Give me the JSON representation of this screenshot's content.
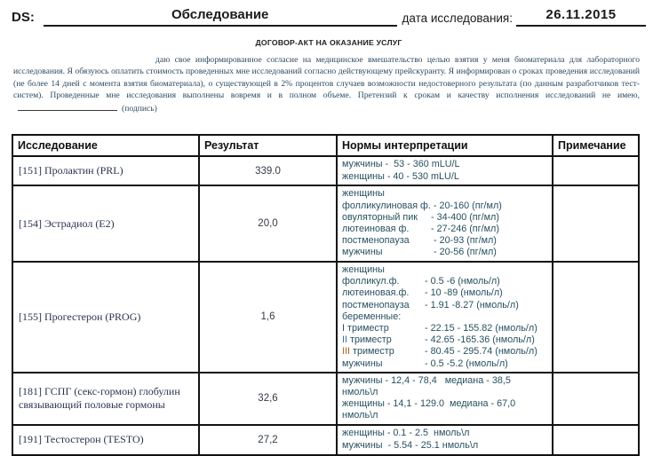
{
  "header": {
    "ds_label": "DS:",
    "exam_label": "Обследование",
    "date_label": "дата исследования:",
    "date_value": "26.11.2015"
  },
  "contract": {
    "title": "ДОГОВОР-АКТ НА ОКАЗАНИЕ УСЛУГ",
    "consent_text": "даю свое информированное согласие на медицинское вмешательство целью взятия у меня биоматериала для лабораторного исследования. Я обязуюсь оплатить стоимость проведенных мне исследований согласно действующему прейскуранту. Я информирован о сроках проведения исследований (не более 14 дней с момента взятия биоматериала), о существующей в 2% процентов случаев возможности недостоверного результата (по данным разработчиков тест-систем). Проведенные мне исследования выполнены вовремя и в полном объеме. Претензий к срокам и качеству исполнения исследований не имею,",
    "signature_label": "(подпись)"
  },
  "results_table": {
    "columns": [
      "Исследование",
      "Результат",
      "Нормы интерпретации",
      "Примечание"
    ],
    "rows": [
      {
        "name": "[151] Пролактин (PRL)",
        "result": "339.0",
        "norms": [
          {
            "text": "мужчины -  53 - 360 mLU/L"
          },
          {
            "text": "женщины - 40 - 530 mLU/L"
          }
        ],
        "note": ""
      },
      {
        "name": "[154] Эстрадиол (E2)",
        "result": "20,0",
        "norms": [
          {
            "text": "женщины"
          },
          {
            "label": "фолликулиновая ф.",
            "value": " - 20-160 (пг/мл)"
          },
          {
            "label": "овуляторный пик",
            "value": " - 34-400 (пг/мл)"
          },
          {
            "label": "лютеиновая ф.",
            "value": " - 27-246 (пг/мл)"
          },
          {
            "label": "постменопауза",
            "value": "  - 20-93 (пг/мл)"
          },
          {
            "label": "мужчины",
            "value": "  - 20-56 (пг/мл)"
          }
        ],
        "note": ""
      },
      {
        "name": "[155] Прогестерон (PROG)",
        "result": "1,6",
        "norms": [
          {
            "text": "женщины"
          },
          {
            "label": "фолликул.ф.",
            "value": " - 0.5 -6 (нмоль/л)"
          },
          {
            "label": "лютеиновая.ф.",
            "value": " - 10 -89 (нмоль/л)"
          },
          {
            "label": "постменопауза",
            "value": " - 1.91 -8.27 (нмоль/л)"
          },
          {
            "text": "беременные:"
          },
          {
            "label": "I триместр",
            "value": " - 22.15 - 155.82 (нмоль/л)"
          },
          {
            "label": "II триместр",
            "value": " - 42.65 -165.36 (нмоль/л)",
            "label_prefix": "II",
            "label_prefix_color": "#3470ad"
          },
          {
            "label": "III триместр",
            "value": " - 80.45 - 295.74 (нмоль/л)",
            "label_prefix": "III",
            "label_prefix_color": "#b5651d"
          },
          {
            "label": "мужчины",
            "value": " - 0.5 -5.2 (нмоль/л)"
          }
        ],
        "note": ""
      },
      {
        "name": "[181] ГСПГ (секс-гормон) глобулин связывающий половые гормоны",
        "result": "32,6",
        "norms": [
          {
            "text": "мужчины - 12,4 - 78,4   медиана - 38,5"
          },
          {
            "text": "нмоль\\л"
          },
          {
            "text": "женщины - 14,1 - 129.0  медиана - 67,0"
          },
          {
            "text": "нмоль\\л"
          }
        ],
        "note": ""
      },
      {
        "name": "[191] Тестостерон (TESTO)",
        "result": "27,2",
        "norms": [
          {
            "text": "женщины - 0.1 - 2.5  нмоль\\л"
          },
          {
            "text": "мужчины  - 5.54 - 25.1 нмоль\\л"
          }
        ],
        "note": ""
      }
    ]
  }
}
